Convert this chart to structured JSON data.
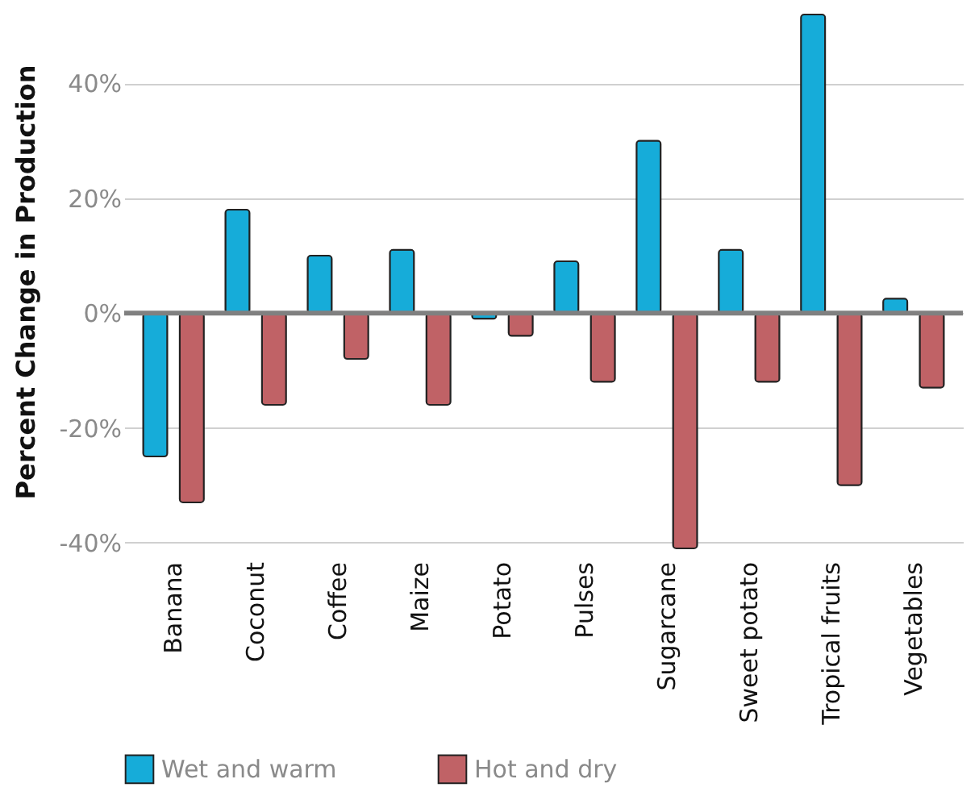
{
  "chart_data": {
    "type": "bar",
    "ylabel": "Percent Change in Production",
    "categories": [
      "Banana",
      "Coconut",
      "Coffee",
      "Maize",
      "Potato",
      "Pulses",
      "Sugarcane",
      "Sweet potato",
      "Tropical fruits",
      "Vegetables"
    ],
    "series": [
      {
        "name": "Wet and warm",
        "color": "#16acd9",
        "values": [
          -25,
          18,
          10,
          11,
          -1,
          9,
          30,
          11,
          52,
          2.5
        ]
      },
      {
        "name": "Hot and dry",
        "color": "#c06266",
        "values": [
          -33,
          -16,
          -8,
          -16,
          -4,
          -12,
          -41,
          -12,
          -30,
          -13
        ]
      }
    ],
    "yticks": [
      {
        "value": -40,
        "label": "-40%"
      },
      {
        "value": -20,
        "label": "-20%"
      },
      {
        "value": 0,
        "label": "0%"
      },
      {
        "value": 20,
        "label": "20%"
      },
      {
        "value": 40,
        "label": "40%"
      }
    ],
    "ylim": [
      -41,
      52
    ],
    "grid": "y",
    "legend": "bottom",
    "ref_lines": [
      {
        "axis": "y",
        "value": 0,
        "color": "#808080"
      }
    ]
  }
}
